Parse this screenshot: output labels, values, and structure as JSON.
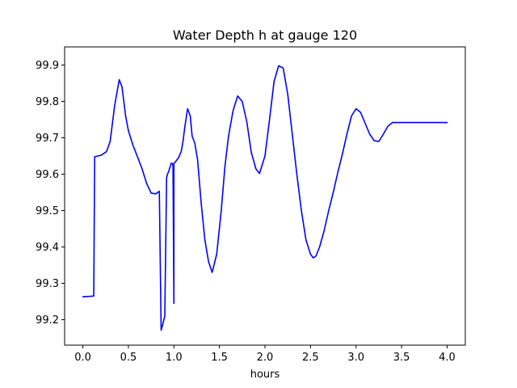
{
  "chart_data": {
    "type": "line",
    "title": "Water Depth h at gauge 120",
    "xlabel": "hours",
    "ylabel": "",
    "xlim": [
      -0.2,
      4.2
    ],
    "ylim": [
      99.13,
      99.95
    ],
    "xticks": [
      0.0,
      0.5,
      1.0,
      1.5,
      2.0,
      2.5,
      3.0,
      3.5,
      4.0
    ],
    "xtick_labels": [
      "0.0",
      "0.5",
      "1.0",
      "1.5",
      "2.0",
      "2.5",
      "3.0",
      "3.5",
      "4.0"
    ],
    "yticks": [
      99.2,
      99.3,
      99.4,
      99.5,
      99.6,
      99.7,
      99.8,
      99.9
    ],
    "ytick_labels": [
      "99.2",
      "99.3",
      "99.4",
      "99.5",
      "99.6",
      "99.7",
      "99.8",
      "99.9"
    ],
    "grid": false,
    "legend": "none",
    "series": [
      {
        "color": "#0000ff",
        "x": [
          0.0,
          0.12,
          0.13,
          0.2,
          0.26,
          0.3,
          0.35,
          0.4,
          0.43,
          0.47,
          0.5,
          0.55,
          0.6,
          0.65,
          0.7,
          0.75,
          0.8,
          0.84,
          0.86,
          0.86,
          0.87,
          0.9,
          0.92,
          0.93,
          0.95,
          0.95,
          0.96,
          0.97,
          0.98,
          0.99,
          1.0,
          1.0,
          1.01,
          1.02,
          1.05,
          1.08,
          1.1,
          1.12,
          1.15,
          1.18,
          1.2,
          1.23,
          1.26,
          1.3,
          1.34,
          1.38,
          1.42,
          1.47,
          1.52,
          1.56,
          1.6,
          1.65,
          1.7,
          1.75,
          1.8,
          1.85,
          1.9,
          1.94,
          2.0,
          2.05,
          2.1,
          2.15,
          2.2,
          2.25,
          2.3,
          2.35,
          2.4,
          2.45,
          2.5,
          2.53,
          2.56,
          2.6,
          2.65,
          2.7,
          2.75,
          2.8,
          2.85,
          2.9,
          2.95,
          3.0,
          3.05,
          3.1,
          3.15,
          3.2,
          3.25,
          3.3,
          3.35,
          3.4,
          3.45,
          3.5,
          3.55,
          3.6,
          3.65,
          3.7,
          3.75,
          3.8,
          3.85,
          3.9,
          3.95,
          4.0
        ],
        "y": [
          99.263,
          99.265,
          99.648,
          99.652,
          99.662,
          99.69,
          99.79,
          99.86,
          99.84,
          99.76,
          99.72,
          99.68,
          99.648,
          99.615,
          99.575,
          99.548,
          99.546,
          99.553,
          99.171,
          99.172,
          99.18,
          99.21,
          99.59,
          99.6,
          99.612,
          99.615,
          99.62,
          99.63,
          99.63,
          99.625,
          99.245,
          99.63,
          99.632,
          99.635,
          99.645,
          99.662,
          99.69,
          99.73,
          99.78,
          99.76,
          99.705,
          99.685,
          99.64,
          99.52,
          99.42,
          99.36,
          99.33,
          99.38,
          99.5,
          99.62,
          99.705,
          99.775,
          99.815,
          99.8,
          99.745,
          99.66,
          99.615,
          99.602,
          99.65,
          99.75,
          99.855,
          99.898,
          99.892,
          99.82,
          99.71,
          99.6,
          99.5,
          99.42,
          99.38,
          99.37,
          99.375,
          99.4,
          99.445,
          99.5,
          99.55,
          99.605,
          99.655,
          99.71,
          99.76,
          99.78,
          99.77,
          99.74,
          99.71,
          99.692,
          99.69,
          99.71,
          99.732,
          99.742,
          99.742,
          99.742,
          99.742,
          99.742,
          99.742,
          99.742,
          99.742,
          99.742,
          99.742,
          99.742,
          99.742,
          99.742
        ]
      }
    ]
  }
}
